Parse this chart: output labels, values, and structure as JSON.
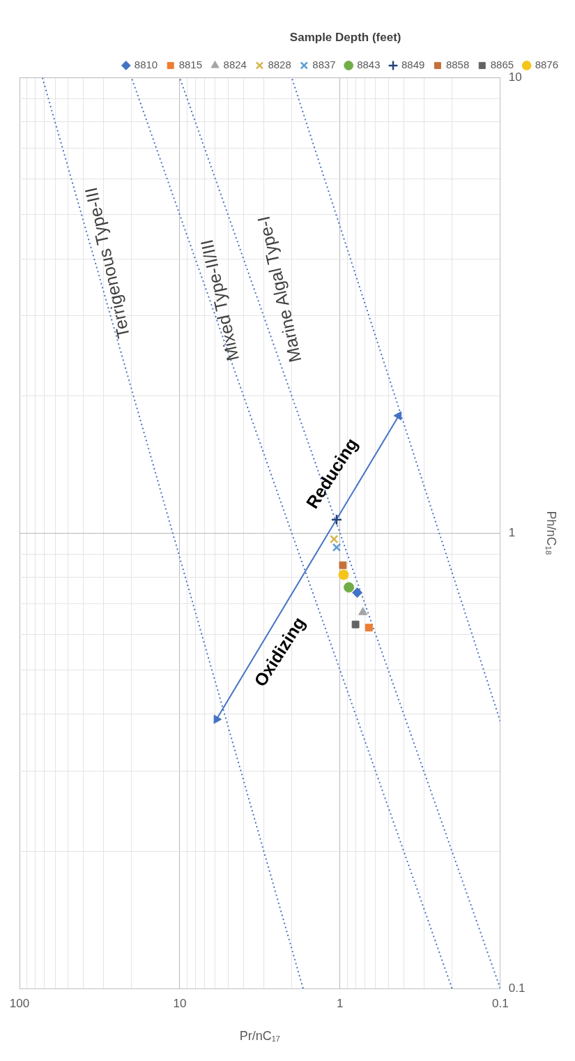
{
  "chart_data": {
    "type": "scatter",
    "xlabel": "Pr/nC₁₇",
    "ylabel": "Ph/nC₁₈",
    "legend_title": "Sample Depth (feet)",
    "legend": "top right",
    "log": "xy",
    "grid": true,
    "xlim": [
      100,
      0.1
    ],
    "ylim": [
      0.1,
      10
    ],
    "xticks": [
      0.1,
      {
        "value": 0.2,
        "label": null
      },
      {
        "value": 0.3,
        "label": null
      },
      {
        "value": 0.4,
        "label": null
      },
      {
        "value": 0.5,
        "label": null
      },
      {
        "value": 0.6,
        "label": null
      },
      {
        "value": 0.7,
        "label": null
      },
      {
        "value": 0.8,
        "label": null
      },
      {
        "value": 0.9,
        "label": null
      },
      1,
      {
        "value": 2,
        "label": null
      },
      {
        "value": 3,
        "label": null
      },
      {
        "value": 4,
        "label": null
      },
      {
        "value": 5,
        "label": null
      },
      {
        "value": 6,
        "label": null
      },
      {
        "value": 7,
        "label": null
      },
      {
        "value": 8,
        "label": null
      },
      {
        "value": 9,
        "label": null
      },
      10,
      {
        "value": 20,
        "label": null
      },
      {
        "value": 30,
        "label": null
      },
      {
        "value": 40,
        "label": null
      },
      {
        "value": 50,
        "label": null
      },
      {
        "value": 60,
        "label": null
      },
      {
        "value": 70,
        "label": null
      },
      {
        "value": 80,
        "label": null
      },
      {
        "value": 90,
        "label": null
      },
      100
    ],
    "yticks": [
      0.1,
      {
        "value": 0.2,
        "label": null
      },
      {
        "value": 0.3,
        "label": null
      },
      {
        "value": 0.4,
        "label": null
      },
      {
        "value": 0.5,
        "label": null
      },
      {
        "value": 0.6,
        "label": null
      },
      {
        "value": 0.7,
        "label": null
      },
      {
        "value": 0.8,
        "label": null
      },
      {
        "value": 0.9,
        "label": null
      },
      1,
      {
        "value": 2,
        "label": null
      },
      {
        "value": 3,
        "label": null
      },
      {
        "value": 4,
        "label": null
      },
      {
        "value": 5,
        "label": null
      },
      {
        "value": 6,
        "label": null
      },
      {
        "value": 7,
        "label": null
      },
      {
        "value": 8,
        "label": null
      },
      {
        "value": 9,
        "label": null
      },
      10
    ],
    "series": [
      {
        "name": "8810",
        "color": "#4472c4",
        "marker": "diamond",
        "x": [
          0.78
        ],
        "values": [
          0.74
        ]
      },
      {
        "name": "8815",
        "color": "#ed7d31",
        "marker": "square",
        "x": [
          0.66
        ],
        "values": [
          0.62
        ]
      },
      {
        "name": "8824",
        "color": "#a5a5a5",
        "marker": "triangle",
        "x": [
          0.72
        ],
        "values": [
          0.67
        ]
      },
      {
        "name": "8828",
        "color": "#d4b64a",
        "marker": "cross",
        "x": [
          1.09
        ],
        "values": [
          0.97
        ]
      },
      {
        "name": "8837",
        "color": "#5b9bd5",
        "marker": "cross",
        "x": [
          1.05
        ],
        "values": [
          0.93
        ]
      },
      {
        "name": "8843",
        "color": "#70ad47",
        "marker": "circle",
        "x": [
          0.88
        ],
        "values": [
          0.76
        ]
      },
      {
        "name": "8849",
        "color": "#264478",
        "marker": "plus",
        "x": [
          1.05
        ],
        "values": [
          1.07
        ]
      },
      {
        "name": "8858",
        "color": "#c5703a",
        "marker": "square",
        "x": [
          0.96
        ],
        "values": [
          0.85
        ]
      },
      {
        "name": "8865",
        "color": "#636363",
        "marker": "square",
        "x": [
          0.8
        ],
        "values": [
          0.63
        ]
      },
      {
        "name": "8876",
        "color": "#f5c518",
        "marker": "circle",
        "x": [
          0.95
        ],
        "values": [
          0.81
        ]
      },
      {
        "type": "line",
        "color": "#4472c4",
        "marker": "none",
        "line_style": "dotted",
        "x": [
          1.7,
          72
        ],
        "values": [
          0.1,
          10
        ]
      },
      {
        "type": "line",
        "color": "#4472c4",
        "marker": "none",
        "line_style": "dotted",
        "x": [
          0.2,
          20
        ],
        "values": [
          0.1,
          10
        ]
      },
      {
        "type": "line",
        "color": "#4472c4",
        "marker": "none",
        "line_style": "dotted",
        "x": [
          0.1,
          10
        ],
        "values": [
          0.1,
          10
        ]
      },
      {
        "type": "line",
        "color": "#4472c4",
        "marker": "none",
        "line_style": "dotted",
        "x": [
          0.1,
          2
        ],
        "values": [
          0.386,
          10
        ]
      },
      {
        "type": "line",
        "color": "#4472c4",
        "marker": "triangle",
        "line_style": "solid",
        "x": [
          5.9,
          0.43
        ],
        "values": [
          0.39,
          1.81
        ]
      }
    ],
    "annotations": [
      "Terrigenous Type-III",
      "Mixed Type-II/III",
      "Marine Algal Type-I",
      "Oxidizing",
      "Reducing"
    ]
  }
}
